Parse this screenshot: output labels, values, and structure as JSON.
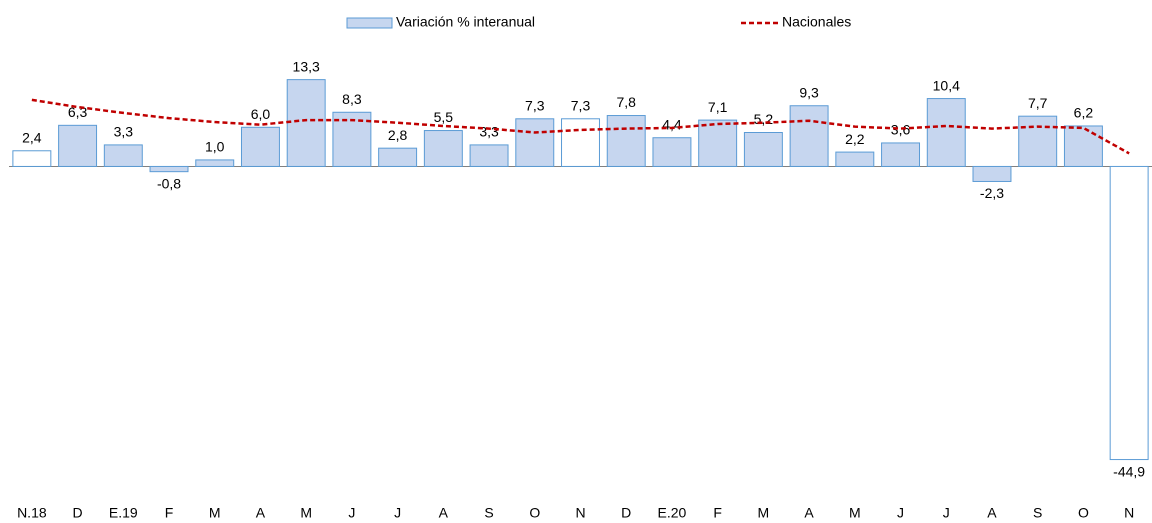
{
  "chart_data": {
    "type": "bar",
    "categories": [
      "N.18",
      "D",
      "E.19",
      "F",
      "M",
      "A",
      "M",
      "J",
      "J",
      "A",
      "S",
      "O",
      "N",
      "D",
      "E.20",
      "F",
      "M",
      "A",
      "M",
      "J",
      "J",
      "A",
      "S",
      "O",
      "N"
    ],
    "series": [
      {
        "name": "Variación % interanual",
        "type": "bar",
        "color": "#c6d6ef",
        "edge_color": "#5b9bd5",
        "colors": [
          "#ffffff",
          "#c6d6ef",
          "#c6d6ef",
          "#c6d6ef",
          "#c6d6ef",
          "#c6d6ef",
          "#c6d6ef",
          "#c6d6ef",
          "#c6d6ef",
          "#c6d6ef",
          "#c6d6ef",
          "#c6d6ef",
          "#ffffff",
          "#c6d6ef",
          "#c6d6ef",
          "#c6d6ef",
          "#c6d6ef",
          "#c6d6ef",
          "#c6d6ef",
          "#c6d6ef",
          "#c6d6ef",
          "#c6d6ef",
          "#c6d6ef",
          "#c6d6ef",
          "#ffffff"
        ],
        "values": [
          2.4,
          6.3,
          3.3,
          -0.8,
          1.0,
          6.0,
          13.3,
          8.3,
          2.8,
          5.5,
          3.3,
          7.3,
          7.3,
          7.8,
          4.4,
          7.1,
          5.2,
          9.3,
          2.2,
          3.6,
          10.4,
          -2.3,
          7.7,
          6.2,
          -44.9
        ],
        "value_labels": [
          "2,4",
          "6,3",
          "3,3",
          "-0,8",
          "1,0",
          "6,0",
          "13,3",
          "8,3",
          "2,8",
          "5,5",
          "3,3",
          "7,3",
          "7,3",
          "7,8",
          "4,4",
          "7,1",
          "5,2",
          "9,3",
          "2,2",
          "3,6",
          "10,4",
          "-2,3",
          "7,7",
          "6,2",
          "-44,9"
        ]
      },
      {
        "name": "Nacionales",
        "type": "line",
        "color": "#c00000",
        "values": [
          10.2,
          9.1,
          8.2,
          7.4,
          6.8,
          6.4,
          7.1,
          7.1,
          6.7,
          6.2,
          5.8,
          5.2,
          5.6,
          5.8,
          5.9,
          6.5,
          6.7,
          7.0,
          6.1,
          5.8,
          6.2,
          5.8,
          6.1,
          5.9,
          2.0
        ]
      }
    ],
    "ylim": [
      -46.5,
      16
    ]
  }
}
